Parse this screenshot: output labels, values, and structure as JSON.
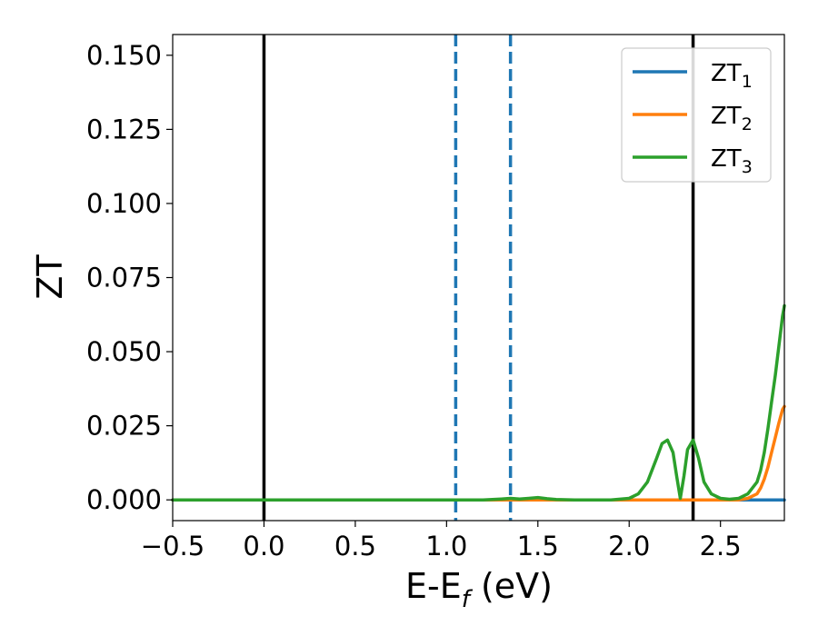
{
  "chart_data": {
    "type": "line",
    "title": "",
    "xlabel": "E-E",
    "xlabel_sub": "f",
    "xlabel_unit": " (eV)",
    "ylabel": "ZT",
    "xlim": [
      -0.5,
      2.85
    ],
    "ylim": [
      -0.007,
      0.157
    ],
    "xticks": [
      -0.5,
      0.0,
      0.5,
      1.0,
      1.5,
      2.0,
      2.5
    ],
    "xtick_labels": [
      "−0.5",
      "0.0",
      "0.5",
      "1.0",
      "1.5",
      "2.0",
      "2.5"
    ],
    "yticks": [
      0.0,
      0.025,
      0.05,
      0.075,
      0.1,
      0.125,
      0.15
    ],
    "ytick_labels": [
      "0.000",
      "0.025",
      "0.050",
      "0.075",
      "0.100",
      "0.125",
      "0.150"
    ],
    "grid": false,
    "legend_position": "top-right",
    "vlines": [
      {
        "x": 0.0,
        "color": "#000000",
        "style": "solid"
      },
      {
        "x": 2.35,
        "color": "#000000",
        "style": "solid"
      },
      {
        "x": 1.05,
        "color": "#1f77b4",
        "style": "dashed"
      },
      {
        "x": 1.35,
        "color": "#1f77b4",
        "style": "dashed"
      }
    ],
    "series": [
      {
        "name": "ZT",
        "name_sub": "1",
        "color": "#1f77b4",
        "x": [
          -0.5,
          0.0,
          0.5,
          1.0,
          1.5,
          2.0,
          2.5,
          2.6,
          2.65,
          2.7,
          2.75,
          2.8,
          2.85
        ],
        "y": [
          0,
          0,
          0,
          0,
          0,
          0,
          0,
          0,
          0,
          0,
          0,
          0,
          0
        ]
      },
      {
        "name": "ZT",
        "name_sub": "2",
        "color": "#ff7f0e",
        "x": [
          -0.5,
          0.0,
          0.5,
          1.0,
          1.5,
          2.0,
          2.5,
          2.6,
          2.65,
          2.7,
          2.72,
          2.74,
          2.76,
          2.78,
          2.8,
          2.82,
          2.84,
          2.85
        ],
        "y": [
          0,
          0,
          0,
          0,
          0,
          0,
          0,
          0,
          0.0005,
          0.002,
          0.004,
          0.007,
          0.011,
          0.016,
          0.021,
          0.026,
          0.0305,
          0.0315
        ]
      },
      {
        "name": "ZT",
        "name_sub": "3",
        "color": "#2ca02c",
        "x": [
          -0.5,
          0.0,
          0.5,
          1.0,
          1.2,
          1.3,
          1.35,
          1.4,
          1.45,
          1.5,
          1.55,
          1.6,
          1.7,
          1.9,
          2.0,
          2.05,
          2.1,
          2.15,
          2.18,
          2.21,
          2.24,
          2.26,
          2.28,
          2.3,
          2.32,
          2.35,
          2.38,
          2.41,
          2.45,
          2.5,
          2.55,
          2.6,
          2.65,
          2.7,
          2.72,
          2.74,
          2.76,
          2.78,
          2.8,
          2.82,
          2.84,
          2.85
        ],
        "y": [
          0,
          0,
          0,
          0,
          0,
          0.0003,
          0.0005,
          0.0003,
          0.0005,
          0.0008,
          0.0004,
          0.0001,
          0,
          0,
          0.0005,
          0.002,
          0.006,
          0.014,
          0.019,
          0.0202,
          0.016,
          0.008,
          0.0005,
          0.008,
          0.017,
          0.0202,
          0.014,
          0.006,
          0.002,
          0.0005,
          0.0002,
          0.0005,
          0.002,
          0.006,
          0.01,
          0.016,
          0.024,
          0.033,
          0.042,
          0.052,
          0.062,
          0.0655
        ]
      }
    ]
  }
}
